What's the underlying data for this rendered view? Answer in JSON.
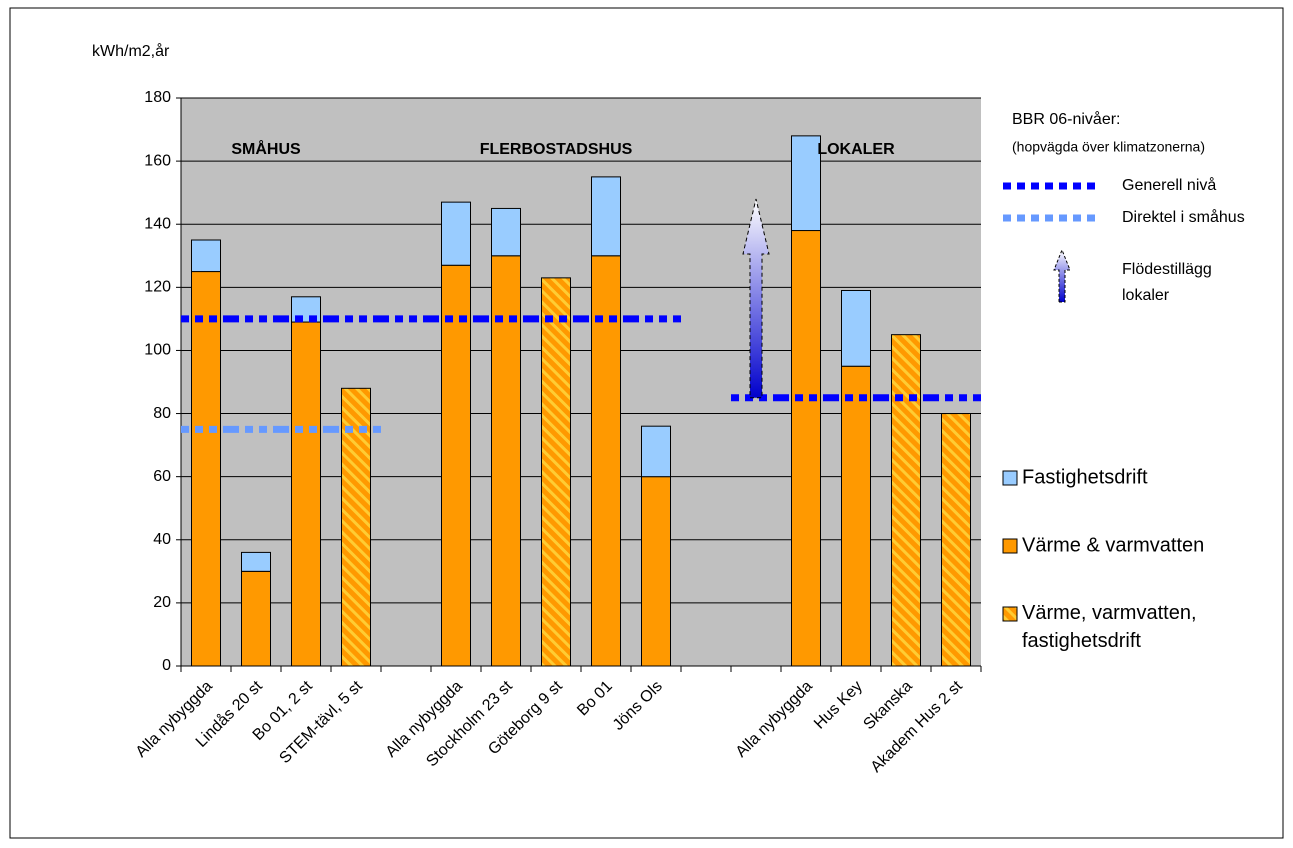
{
  "chart_data": {
    "type": "bar",
    "stacked": true,
    "y_label": "kWh/m2,år",
    "categories": [
      "Alla nybyggda",
      "Lindås 20 st",
      "Bo 01, 2 st",
      "STEM-tävl, 5 st",
      null,
      "Alla nybyggda",
      "Stockholm 23 st",
      "Göteborg 9 st",
      "Bo 01",
      "Jöns Ols",
      null,
      null,
      "Alla nybyggda",
      "Hus Key",
      "Skanska",
      "Akadem Hus 2 st"
    ],
    "series": [
      {
        "name": "Värme & varmvatten",
        "color": "#ff9900",
        "values": [
          125,
          30,
          109,
          null,
          null,
          127,
          130,
          null,
          130,
          60,
          null,
          null,
          138,
          95,
          null,
          null
        ]
      },
      {
        "name": "Fastighetsdrift",
        "color": "#99ccff",
        "values": [
          10,
          6,
          8,
          null,
          null,
          20,
          15,
          null,
          25,
          16,
          null,
          null,
          30,
          24,
          null,
          null
        ]
      },
      {
        "name": "Värme, varmvatten, fastighetsdrift",
        "color": "#ff9900",
        "hatch": "#ffcc33",
        "values": [
          null,
          null,
          null,
          88,
          null,
          null,
          null,
          123,
          null,
          null,
          null,
          null,
          null,
          null,
          105,
          80
        ]
      }
    ],
    "ylim": [
      0,
      180
    ],
    "yticks": [
      0,
      20,
      40,
      60,
      80,
      100,
      120,
      140,
      160,
      180
    ],
    "grid": true,
    "group_labels": [
      {
        "text": "SMÅHUS",
        "category_index": 1.2
      },
      {
        "text": "FLERBOSTADSHUS",
        "category_index": 7
      },
      {
        "text": "LOKALER",
        "category_index": 13
      }
    ],
    "reference_title": "BBR 06-nivåer:",
    "reference_subtitle": "(hopvägda över klimatzonerna)",
    "reference_lines": [
      {
        "name": "Generell nivå",
        "color": "#0000ff",
        "values": [
          110,
          110,
          110,
          110,
          110,
          110,
          110,
          110,
          110,
          110,
          null,
          85,
          85,
          85,
          85,
          85
        ]
      },
      {
        "name": "Direktel i småhus",
        "color": "#6699ff",
        "values": [
          75,
          75,
          75,
          75,
          null,
          null,
          null,
          null,
          null,
          null,
          null,
          null,
          null,
          null,
          null,
          null
        ]
      }
    ],
    "arrow": {
      "name": "Flödestillägg lokaler",
      "from": 85,
      "to": 148,
      "category_index": 11
    }
  }
}
